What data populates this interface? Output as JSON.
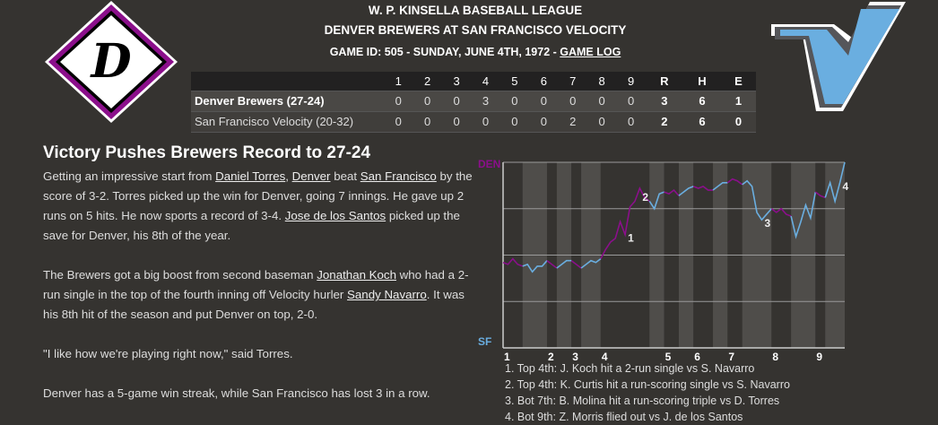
{
  "header": {
    "league": "W. P. KINSELLA BASEBALL LEAGUE",
    "matchup": "DENVER BREWERS AT SAN FRANCISCO VELOCITY",
    "game_info": "GAME ID: 505 - SUNDAY, JUNE 4TH, 1972 - ",
    "game_log_link": "GAME LOG"
  },
  "logos": {
    "away": "D",
    "home": "V"
  },
  "linescore": {
    "headers": [
      "",
      "1",
      "2",
      "3",
      "4",
      "5",
      "6",
      "7",
      "8",
      "9",
      "R",
      "H",
      "E"
    ],
    "rows": [
      {
        "team": "Denver Brewers (27-24)",
        "innings": [
          "0",
          "0",
          "0",
          "3",
          "0",
          "0",
          "0",
          "0",
          "0"
        ],
        "r": "3",
        "h": "6",
        "e": "1"
      },
      {
        "team": "San Francisco Velocity (20-32)",
        "innings": [
          "0",
          "0",
          "0",
          "0",
          "0",
          "0",
          "2",
          "0",
          "0"
        ],
        "r": "2",
        "h": "6",
        "e": "0"
      }
    ]
  },
  "story": {
    "headline": "Victory Pushes Brewers Record to 27-24",
    "p1": {
      "t1": "Getting an impressive start from ",
      "l1": "Daniel Torres",
      "t2": ", ",
      "l2": "Denver",
      "t3": " beat ",
      "l3": "San Francisco",
      "t4": " by the score of 3-2. Torres picked up the win for Denver, going 7 innings. He gave up 2 runs on 5 hits. He now sports a record of 3-4. ",
      "l4": "Jose de los Santos",
      "t5": " picked up the save for Denver, his 8th of the year."
    },
    "p2": {
      "t1": "The Brewers got a big boost from second baseman ",
      "l1": "Jonathan Koch",
      "t2": " who had a 2-run single in the top of the fourth inning off Velocity hurler ",
      "l2": "Sandy Navarro",
      "t3": ". It was his 8th hit of the season and put Denver on top, 2-0."
    },
    "p3": "\"I like how we're playing right now,\" said Torres.",
    "p4": "Denver has a 5-game win streak, while San Francisco has lost 3 in a row."
  },
  "chart_data": {
    "type": "line",
    "top_label": "DEN",
    "bottom_label": "SF",
    "colors": {
      "away": "#8b0f8b",
      "home": "#6aaee0",
      "band_dark": "#353330",
      "band_light": "#4f4d4a",
      "grid": "#9a9a9a"
    },
    "ylim": [
      0,
      1
    ],
    "y_grid": [
      0,
      0.25,
      0.5,
      0.75,
      1
    ],
    "values": [
      0.46,
      0.45,
      0.48,
      0.45,
      0.44,
      0.45,
      0.41,
      0.44,
      0.44,
      0.47,
      0.45,
      0.43,
      0.45,
      0.47,
      0.47,
      0.45,
      0.43,
      0.45,
      0.47,
      0.46,
      0.48,
      0.53,
      0.57,
      0.59,
      0.68,
      0.61,
      0.76,
      0.79,
      0.86,
      0.81,
      0.79,
      0.75,
      0.83,
      0.84,
      0.83,
      0.85,
      0.82,
      0.84,
      0.86,
      0.87,
      0.86,
      0.87,
      0.85,
      0.85,
      0.87,
      0.89,
      0.89,
      0.91,
      0.9,
      0.88,
      0.9,
      0.87,
      0.73,
      0.69,
      0.72,
      0.75,
      0.73,
      0.75,
      0.72,
      0.71,
      0.6,
      0.68,
      0.77,
      0.7,
      0.84,
      0.82,
      0.81,
      0.89,
      0.79,
      0.89,
      1.0
    ],
    "half_inning_starts": [
      0,
      4,
      9,
      11,
      14,
      16,
      20,
      30,
      33,
      36,
      39,
      43,
      46,
      49,
      55,
      59,
      64,
      66,
      70
    ],
    "inning_labels": [
      "1",
      "2",
      "3",
      "4",
      "5",
      "6",
      "7",
      "8",
      "9"
    ],
    "markers": [
      {
        "label": "1",
        "play": 25
      },
      {
        "label": "2",
        "play": 28
      },
      {
        "label": "3",
        "play": 53
      },
      {
        "label": "4",
        "play": 69
      }
    ],
    "notes": [
      "1. Top 4th: J. Koch hit a 2-run single vs S. Navarro",
      "2. Top 4th: K. Curtis hit a run-scoring single vs S. Navarro",
      "3. Bot 7th: B. Molina hit a run-scoring triple vs D. Torres",
      "4. Bot 9th: Z. Morris flied out vs J. de los Santos"
    ]
  }
}
